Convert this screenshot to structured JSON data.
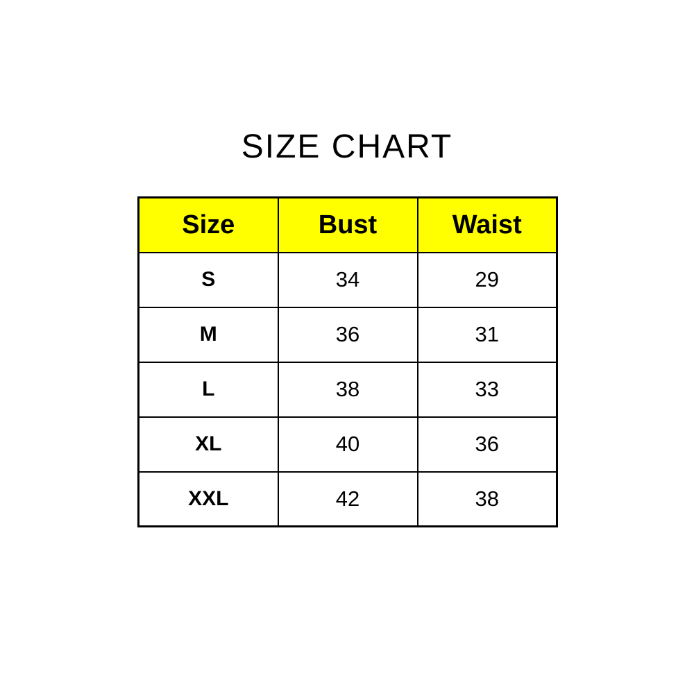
{
  "colors": {
    "header_bg": "#FFFF00",
    "border": "#000000",
    "text": "#000000",
    "background": "#FFFFFF"
  },
  "chart_data": {
    "type": "table",
    "title": "SIZE CHART",
    "columns": [
      "Size",
      "Bust",
      "Waist"
    ],
    "rows": [
      [
        "S",
        "34",
        "29"
      ],
      [
        "M",
        "36",
        "31"
      ],
      [
        "L",
        "38",
        "33"
      ],
      [
        "XL",
        "40",
        "36"
      ],
      [
        "XXL",
        "42",
        "38"
      ]
    ],
    "layout": {
      "header_fill": "#FFFF00",
      "grid": "on",
      "title_position": "top-center"
    }
  }
}
